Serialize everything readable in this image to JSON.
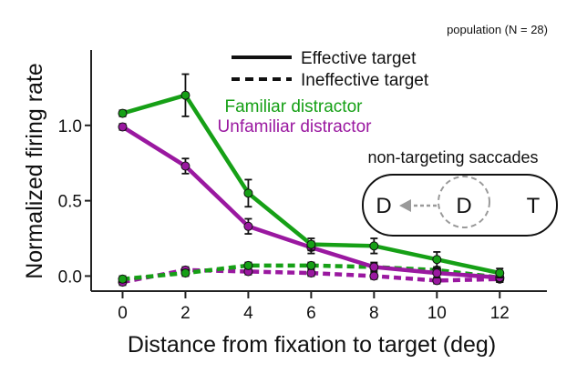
{
  "chart_data": {
    "type": "line",
    "annotation": "population (N = 28)",
    "xlabel": "Distance from fixation to target (deg)",
    "ylabel": "Normalized firing rate",
    "x": [
      0,
      2,
      4,
      6,
      8,
      10,
      12
    ],
    "xlim": [
      -1,
      13.5
    ],
    "ylim": [
      -0.1,
      1.5
    ],
    "x_ticks": [
      "0",
      "2",
      "4",
      "6",
      "8",
      "10",
      "12"
    ],
    "y_ticks": [
      "0.0",
      "0.5",
      "1.0"
    ],
    "y_tick_values": [
      0.0,
      0.5,
      1.0
    ],
    "grid": false,
    "colors": {
      "familiar": "#16a016",
      "unfamiliar": "#9a18a0",
      "axis": "#222222",
      "inset": "#9a9a9a"
    },
    "legend": {
      "line_styles": [
        {
          "label": "Effective target",
          "style": "solid"
        },
        {
          "label": "Ineffective target",
          "style": "dashed"
        }
      ],
      "color_entries": [
        {
          "label": "Familiar distractor",
          "color": "#16a016"
        },
        {
          "label": "Unfamiliar distractor",
          "color": "#9a18a0"
        }
      ]
    },
    "series": [
      {
        "name": "Familiar distractor / Effective target",
        "color": "#16a016",
        "style": "solid",
        "values": [
          1.08,
          1.2,
          0.55,
          0.21,
          0.2,
          0.11,
          0.02
        ],
        "errors": [
          0.02,
          0.14,
          0.09,
          0.04,
          0.05,
          0.05,
          0.03
        ]
      },
      {
        "name": "Unfamiliar distractor / Effective target",
        "color": "#9a18a0",
        "style": "solid",
        "values": [
          0.99,
          0.73,
          0.33,
          0.19,
          0.06,
          0.02,
          -0.01
        ],
        "errors": [
          0.02,
          0.05,
          0.05,
          0.04,
          0.03,
          0.03,
          0.03
        ]
      },
      {
        "name": "Familiar distractor / Ineffective target",
        "color": "#16a016",
        "style": "dashed",
        "values": [
          -0.02,
          0.02,
          0.07,
          0.07,
          0.06,
          0.04,
          -0.01
        ],
        "errors": [
          0.02,
          0.02,
          0.02,
          0.02,
          0.02,
          0.02,
          0.02
        ]
      },
      {
        "name": "Unfamiliar distractor / Ineffective target",
        "color": "#9a18a0",
        "style": "dashed",
        "values": [
          -0.04,
          0.04,
          0.03,
          0.02,
          0.0,
          -0.03,
          -0.02
        ],
        "errors": [
          0.02,
          0.02,
          0.02,
          0.02,
          0.02,
          0.02,
          0.02
        ]
      }
    ],
    "inset": {
      "title": "non-targeting saccades",
      "left_letter": "D",
      "center_letter": "D",
      "right_letter": "T"
    }
  }
}
